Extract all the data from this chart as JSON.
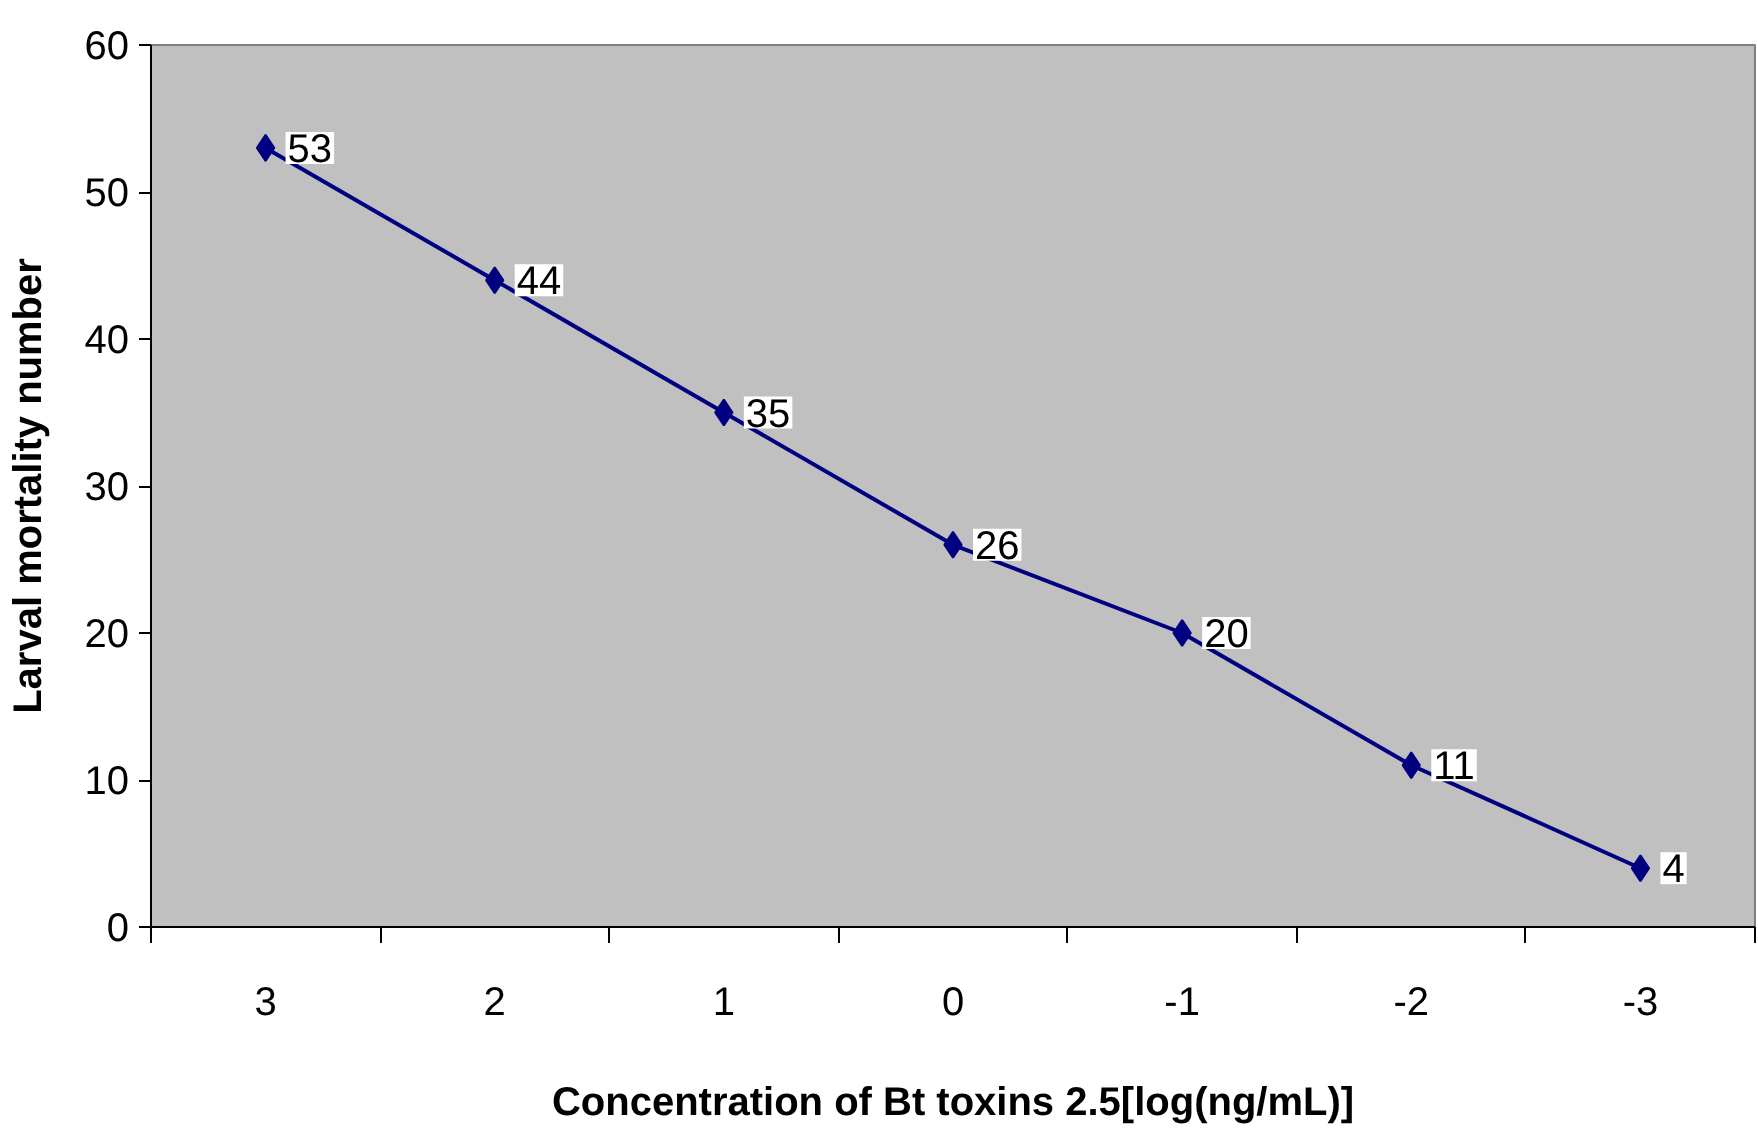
{
  "chart_data": {
    "type": "line",
    "xlabel": "Concentration of Bt toxins 2.5[log(ng/mL)]",
    "ylabel": "Larval mortality number",
    "categories": [
      "3",
      "2",
      "1",
      "0",
      "-1",
      "-2",
      "-3"
    ],
    "values": [
      53,
      44,
      35,
      26,
      20,
      11,
      4
    ],
    "color": "#000080",
    "marker": "diamond",
    "line_style": "solid",
    "ylim": [
      0,
      60
    ],
    "yticks": [
      0,
      10,
      20,
      30,
      40,
      50,
      60
    ],
    "data_labels": true
  }
}
